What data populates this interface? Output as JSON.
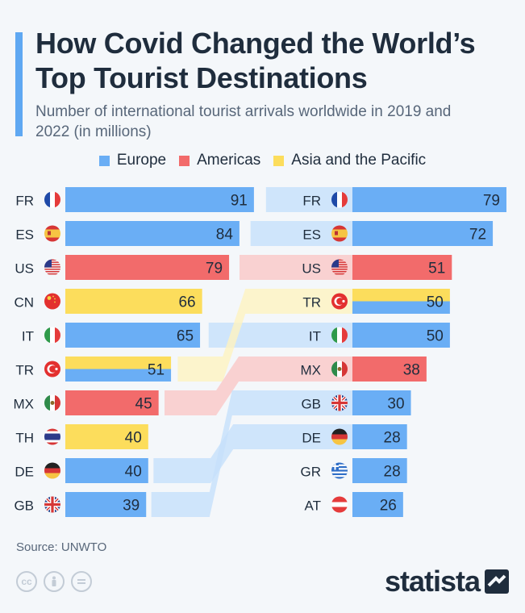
{
  "title": "How Covid Changed the World’s Top Tourist Destinations",
  "subtitle": "Number of international tourist arrivals worldwide in 2019 and 2022 (in millions)",
  "source": "Source: UNWTO",
  "brand": "statista",
  "icons": [
    "cc-icon",
    "person-icon",
    "equals-icon"
  ],
  "regions": {
    "Europe": "#6aaef5",
    "Americas": "#f26b6b",
    "Asia and the Pacific": "#fcdd5c"
  },
  "legend": [
    {
      "label": "Europe",
      "color": "#6aaef5"
    },
    {
      "label": "Americas",
      "color": "#f26b6b"
    },
    {
      "label": "Asia and the Pacific",
      "color": "#fcdd5c"
    }
  ],
  "chart_data": {
    "type": "bar",
    "title": "How Covid Changed the World’s Top Tourist Destinations",
    "subtitle": "Number of international tourist arrivals worldwide in 2019 and 2022 (in millions)",
    "xlim": [
      0,
      79
    ],
    "series": [
      {
        "name": "2019",
        "rows": [
          {
            "code": "FR",
            "value": 91,
            "regions": [
              "Europe"
            ]
          },
          {
            "code": "ES",
            "value": 84,
            "regions": [
              "Europe"
            ]
          },
          {
            "code": "US",
            "value": 79,
            "regions": [
              "Americas"
            ]
          },
          {
            "code": "CN",
            "value": 66,
            "regions": [
              "Asia and the Pacific"
            ]
          },
          {
            "code": "IT",
            "value": 65,
            "regions": [
              "Europe"
            ]
          },
          {
            "code": "TR",
            "value": 51,
            "regions": [
              "Asia and the Pacific",
              "Europe"
            ]
          },
          {
            "code": "MX",
            "value": 45,
            "regions": [
              "Americas"
            ]
          },
          {
            "code": "TH",
            "value": 40,
            "regions": [
              "Asia and the Pacific"
            ]
          },
          {
            "code": "DE",
            "value": 40,
            "regions": [
              "Europe"
            ]
          },
          {
            "code": "GB",
            "value": 39,
            "regions": [
              "Europe"
            ]
          }
        ]
      },
      {
        "name": "2022",
        "rows": [
          {
            "code": "FR",
            "value": 79,
            "regions": [
              "Europe"
            ]
          },
          {
            "code": "ES",
            "value": 72,
            "regions": [
              "Europe"
            ]
          },
          {
            "code": "US",
            "value": 51,
            "regions": [
              "Americas"
            ]
          },
          {
            "code": "TR",
            "value": 50,
            "regions": [
              "Asia and the Pacific",
              "Europe"
            ]
          },
          {
            "code": "IT",
            "value": 50,
            "regions": [
              "Europe"
            ]
          },
          {
            "code": "MX",
            "value": 38,
            "regions": [
              "Americas"
            ]
          },
          {
            "code": "GB",
            "value": 30,
            "regions": [
              "Europe"
            ]
          },
          {
            "code": "DE",
            "value": 28,
            "regions": [
              "Europe"
            ]
          },
          {
            "code": "GR",
            "value": 28,
            "regions": [
              "Europe"
            ]
          },
          {
            "code": "AT",
            "value": 26,
            "regions": [
              "Europe"
            ]
          }
        ]
      }
    ]
  }
}
